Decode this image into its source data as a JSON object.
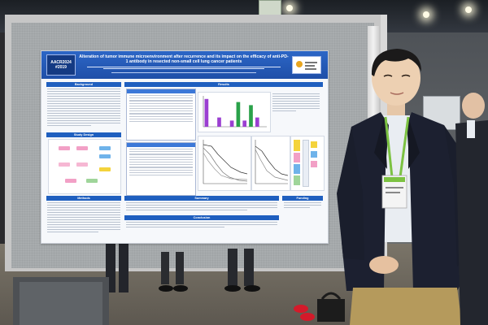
{
  "poster": {
    "badge_line1": "AACR2024",
    "badge_line2": "#2019",
    "title": "Alteration of tumor immune microenvironment after recurrence and its impact on the efficacy of anti-PD-1 antibody in resected non-small cell lung cancer patients",
    "sections": {
      "background": "Background",
      "study_design": "Study Design",
      "methods": "Methods",
      "results": "Results",
      "summary": "Summary",
      "conclusion": "Conclusion",
      "funding": "Funding"
    }
  },
  "colors": {
    "poster_blue": "#1f5fbf",
    "board_gray": "#a8acae",
    "jacket": "#1c2030",
    "lanyard": "#7cc242",
    "trousers": "#b59a5c"
  },
  "chart_data": {
    "type": "bar",
    "categories": [
      "1",
      "2",
      "3",
      "4",
      "5",
      "6",
      "7",
      "8",
      "9",
      "10"
    ],
    "series": [
      {
        "values": [
          9,
          0,
          3,
          0,
          2,
          8,
          2,
          7,
          3,
          0
        ]
      }
    ],
    "ylim": [
      0,
      10
    ]
  }
}
